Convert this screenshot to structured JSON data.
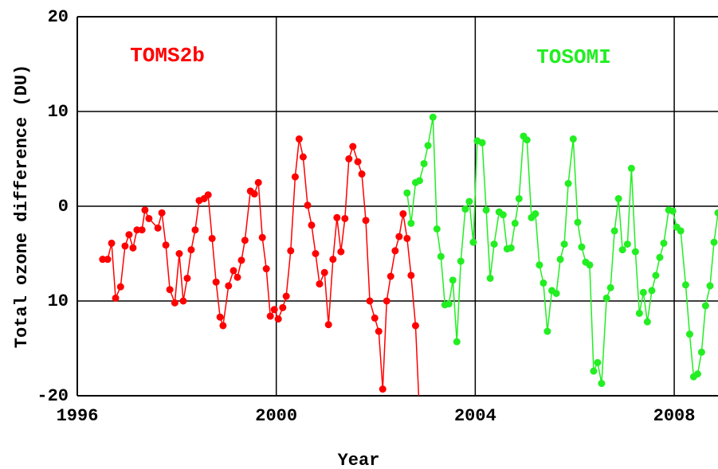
{
  "chart_data": {
    "type": "line",
    "xlabel": "Year",
    "ylabel": "Total ozone difference (DU)",
    "xlim": [
      1996,
      2008.88
    ],
    "ylim": [
      -20,
      20
    ],
    "xticks": [
      1996,
      2000,
      2004,
      2008
    ],
    "yticks": [
      -20,
      {
        "value": -10,
        "label": "10"
      },
      0,
      10,
      20
    ],
    "grid": true,
    "series": [
      {
        "name": "TOMS2b",
        "color": "#ff0000",
        "x": [
          1996.51,
          1996.61,
          1996.69,
          1996.77,
          1996.87,
          1996.96,
          1997.04,
          1997.12,
          1997.2,
          1997.3,
          1997.36,
          1997.44,
          1997.62,
          1997.7,
          1997.78,
          1997.86,
          1997.96,
          1998.05,
          1998.13,
          1998.21,
          1998.29,
          1998.37,
          1998.45,
          1998.55,
          1998.63,
          1998.71,
          1998.79,
          1998.87,
          1998.93,
          1999.04,
          1999.14,
          1999.22,
          1999.3,
          1999.37,
          1999.48,
          1999.56,
          1999.64,
          1999.72,
          1999.8,
          1999.88,
          1999.96,
          2000.04,
          2000.13,
          2000.2,
          2000.29,
          2000.38,
          2000.46,
          2000.54,
          2000.63,
          2000.71,
          2000.79,
          2000.87,
          2000.97,
          2001.05,
          2001.14,
          2001.22,
          2001.3,
          2001.38,
          2001.46,
          2001.54,
          2001.64,
          2001.72,
          2001.8,
          2001.88,
          2001.98,
          2002.06,
          2002.14,
          2002.22,
          2002.3,
          2002.39,
          2002.47,
          2002.55,
          2002.63,
          2002.71,
          2002.8,
          2002.88
        ],
        "values": [
          -5.6,
          -5.6,
          -3.9,
          -9.7,
          -8.5,
          -4.2,
          -3.0,
          -4.4,
          -2.5,
          -2.5,
          -0.4,
          -1.3,
          -2.3,
          -0.7,
          -4.1,
          -8.8,
          -10.2,
          -5.0,
          -10.0,
          -7.6,
          -4.6,
          -2.5,
          0.6,
          0.8,
          1.2,
          -3.4,
          -8.0,
          -11.7,
          -12.6,
          -8.4,
          -6.8,
          -7.5,
          -5.7,
          -3.6,
          1.6,
          1.3,
          2.5,
          -3.3,
          -6.6,
          -11.6,
          -10.9,
          -11.9,
          -10.7,
          -9.5,
          -4.7,
          3.1,
          7.1,
          5.2,
          0.1,
          -2.0,
          -5.0,
          -8.2,
          -7.0,
          -12.5,
          -5.6,
          -1.2,
          -4.8,
          -1.3,
          5.0,
          6.3,
          4.7,
          3.4,
          -1.5,
          -10.0,
          -11.8,
          -13.2,
          -19.3,
          -10.0,
          -7.4,
          -4.7,
          -3.2,
          -0.8,
          -3.4,
          -7.3,
          -12.6,
          -22
        ]
      },
      {
        "name": "TOSOMI",
        "color": "#22ee22",
        "x": [
          2002.63,
          2002.71,
          2002.8,
          2002.88,
          2002.97,
          2003.05,
          2003.15,
          2003.23,
          2003.31,
          2003.39,
          2003.47,
          2003.55,
          2003.63,
          2003.71,
          2003.8,
          2003.88,
          2003.96,
          2004.04,
          2004.14,
          2004.22,
          2004.3,
          2004.38,
          2004.48,
          2004.56,
          2004.64,
          2004.72,
          2004.8,
          2004.88,
          2004.97,
          2005.04,
          2005.13,
          2005.21,
          2005.29,
          2005.37,
          2005.45,
          2005.54,
          2005.63,
          2005.71,
          2005.79,
          2005.87,
          2005.97,
          2006.06,
          2006.14,
          2006.22,
          2006.3,
          2006.38,
          2006.46,
          2006.54,
          2006.64,
          2006.72,
          2006.8,
          2006.88,
          2006.96,
          2007.06,
          2007.14,
          2007.22,
          2007.3,
          2007.38,
          2007.46,
          2007.55,
          2007.63,
          2007.71,
          2007.79,
          2007.89,
          2007.97,
          2008.05,
          2008.13,
          2008.23,
          2008.31,
          2008.39,
          2008.47,
          2008.55,
          2008.63,
          2008.72,
          2008.8,
          2008.88
        ],
        "values": [
          1.4,
          -1.8,
          2.5,
          2.7,
          4.5,
          6.4,
          9.4,
          -2.4,
          -5.3,
          -10.4,
          -10.3,
          -7.8,
          -14.3,
          -5.8,
          -0.3,
          0.5,
          -3.8,
          6.9,
          6.7,
          -0.4,
          -7.6,
          -4.0,
          -0.6,
          -0.9,
          -4.5,
          -4.4,
          -1.8,
          0.8,
          7.4,
          7.0,
          -1.2,
          -0.8,
          -6.2,
          -8.1,
          -13.2,
          -8.9,
          -9.2,
          -5.6,
          -4.0,
          2.4,
          7.1,
          -1.7,
          -4.3,
          -5.9,
          -6.2,
          -17.4,
          -16.5,
          -18.7,
          -9.7,
          -8.6,
          -2.6,
          0.8,
          -4.6,
          -4.0,
          4.0,
          -4.8,
          -11.3,
          -9.1,
          -12.2,
          -8.9,
          -7.3,
          -5.4,
          -3.9,
          -0.4,
          -0.5,
          -2.2,
          -2.6,
          -8.3,
          -13.5,
          -18.0,
          -17.7,
          -15.4,
          -10.5,
          -8.4,
          -3.8,
          -0.7
        ]
      }
    ]
  }
}
